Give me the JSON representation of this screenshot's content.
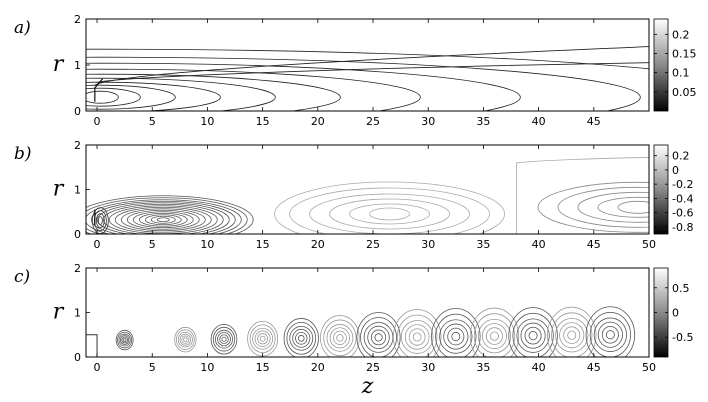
{
  "chart_data": [
    {
      "type": "contour",
      "panel_label": "a)",
      "ylabel": "r",
      "xlabel": "",
      "xlim": [
        -1,
        50
      ],
      "ylim": [
        0,
        2
      ],
      "xticks": [
        "0",
        "5",
        "10",
        "15",
        "20",
        "25",
        "30",
        "35",
        "40",
        "45"
      ],
      "yticks": [
        "0",
        "1",
        "2"
      ],
      "colorbar": {
        "ticks": [
          "0.2",
          "0.15",
          "0.1",
          "0.05"
        ],
        "tick_values": [
          0.2,
          0.15,
          0.1,
          0.05
        ],
        "range": [
          0,
          0.24
        ]
      },
      "grid": false
    },
    {
      "type": "contour",
      "panel_label": "b)",
      "ylabel": "r",
      "xlabel": "",
      "xlim": [
        -1,
        50
      ],
      "ylim": [
        0,
        2
      ],
      "xticks": [
        "0",
        "5",
        "10",
        "15",
        "20",
        "25",
        "30",
        "35",
        "40",
        "45",
        "50"
      ],
      "yticks": [
        "0",
        "1",
        "2"
      ],
      "colorbar": {
        "ticks": [
          "0.2",
          "0",
          "-0.2",
          "-0.4",
          "-0.6",
          "-0.8"
        ],
        "tick_values": [
          0.2,
          0,
          -0.2,
          -0.4,
          -0.6,
          -0.8
        ],
        "range": [
          -0.9,
          0.35
        ]
      },
      "grid": false
    },
    {
      "type": "contour",
      "panel_label": "c)",
      "ylabel": "r",
      "xlabel": "z",
      "xlim": [
        -1,
        50
      ],
      "ylim": [
        0,
        2
      ],
      "xticks": [
        "0",
        "5",
        "10",
        "15",
        "20",
        "25",
        "30",
        "35",
        "40",
        "45",
        "50"
      ],
      "yticks": [
        "0",
        "1",
        "2"
      ],
      "colorbar": {
        "ticks": [
          "0.5",
          "0",
          "-0.5"
        ],
        "tick_values": [
          0.5,
          0,
          -0.5
        ],
        "range": [
          -0.9,
          0.9
        ]
      },
      "grid": false
    }
  ]
}
